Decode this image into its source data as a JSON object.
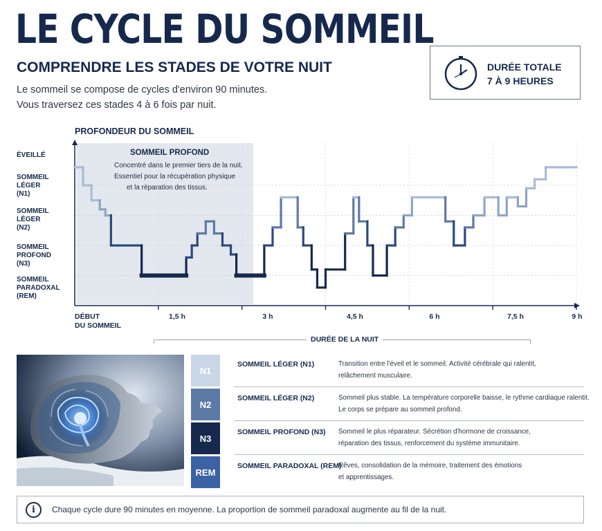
{
  "header": {
    "title": "LE CYCLE DU SOMMEIL",
    "subtitle": "COMPRENDRE LES STADES DE VOTRE NUIT",
    "intro_line1": "Le sommeil se compose de cycles d'environ 90 minutes.",
    "intro_line2": "Vous traversez ces stades 4 à 6 fois par nuit."
  },
  "duration": {
    "icon": "clock-icon",
    "label_line1": "DURÉE TOTALE",
    "label_line2": "7 À 9 HEURES"
  },
  "chart": {
    "title": "PROFONDEUR DU SOMMEIL",
    "y_labels": {
      "wake": "ÉVEILLÉ",
      "n1": "SOMMEIL\nLÉGER\n(N1)",
      "n2": "SOMMEIL\nLÉGER\n(N2)",
      "n3": "SOMMEIL\nPROFOND\n(N3)",
      "rem": "SOMMEIL\nPARADOXAL\n(REM)"
    },
    "x_ticks": [
      "DÉBUT\nDU SOMMEIL",
      "1,5 h",
      "3 h",
      "4,5 h",
      "6 h",
      "7,5 h",
      "9 h"
    ],
    "x_axis_title": "DURÉE DE LA NUIT",
    "deep_sleep_annotation": {
      "title": "SOMMEIL PROFOND",
      "line1": "Concentré dans le premier tiers de la nuit.",
      "line2": "Essentiel pour la récupération physique",
      "line3": "et la réparation des tissus."
    }
  },
  "chart_data": {
    "type": "line",
    "title": "PROFONDEUR DU SOMMEIL",
    "xlabel": "DURÉE DE LA NUIT",
    "ylabel": "",
    "x_unit": "h",
    "xlim": [
      0,
      9
    ],
    "y_categories": [
      "ÉVEILLÉ",
      "SOMMEIL LÉGER (N1)",
      "SOMMEIL LÉGER (N2)",
      "SOMMEIL PROFOND (N3)",
      "SOMMEIL PARADOXAL (REM)"
    ],
    "x_tick_labels": [
      "DÉBUT DU SOMMEIL",
      "1,5 h",
      "3 h",
      "4,5 h",
      "6 h",
      "7,5 h",
      "9 h"
    ],
    "highlight_region": {
      "label": "SOMMEIL PROFOND",
      "x_range": [
        0,
        3.4
      ]
    },
    "series": [
      {
        "x": [
          0,
          0.15,
          0.15,
          0.3,
          0.3,
          0.45,
          0.45,
          0.55,
          0.55,
          0.65,
          0.65,
          1.2,
          1.2,
          1.3,
          1.3,
          2.0,
          2.0,
          2.1,
          2.1,
          2.2,
          2.2,
          2.35,
          2.35,
          2.5,
          2.5,
          2.65,
          2.65,
          2.8,
          2.8,
          2.9,
          2.9,
          3.1,
          3.1,
          3.4,
          3.4,
          3.55
        ],
        "y": [
          4.6,
          4.6,
          4.0,
          4.0,
          3.5,
          3.5,
          3.2,
          3.2,
          3.0,
          3.0,
          2.0,
          2.0,
          1.0,
          1.0,
          1.0,
          1.0,
          1.6,
          1.6,
          2.0,
          2.0,
          2.4,
          2.4,
          2.8,
          2.8,
          2.4,
          2.4,
          2.0,
          2.0,
          1.7,
          1.7,
          1.0,
          1.0,
          1.0,
          1.0,
          2.0,
          2.0
        ]
      },
      {
        "x": [
          3.55,
          3.55,
          3.7,
          3.7,
          4.0,
          4.0,
          4.1,
          4.1,
          4.25,
          4.25,
          4.35,
          4.35,
          4.5,
          4.5,
          4.85,
          4.85,
          5.0,
          5.0,
          5.1,
          5.1,
          5.25,
          5.25,
          5.35,
          5.35,
          5.6,
          5.6,
          5.75,
          5.75,
          5.9,
          5.9,
          6.05,
          6.05,
          6.65,
          6.65,
          6.8,
          6.8,
          7.0,
          7.0,
          7.15,
          7.15,
          7.35,
          7.35,
          7.6,
          7.6,
          7.75,
          7.75,
          7.95,
          7.95,
          8.1,
          8.1,
          8.25,
          8.25,
          8.45,
          8.45,
          9.0
        ],
        "y": [
          2.0,
          2.6,
          2.6,
          3.6,
          3.6,
          2.6,
          2.6,
          2.0,
          2.0,
          1.2,
          1.2,
          0.6,
          0.6,
          1.2,
          1.2,
          2.4,
          2.4,
          3.6,
          3.6,
          2.8,
          2.8,
          2.0,
          2.0,
          1.0,
          1.0,
          2.0,
          2.0,
          2.6,
          2.6,
          3.0,
          3.0,
          3.6,
          3.6,
          2.8,
          2.8,
          2.0,
          2.0,
          2.6,
          2.6,
          3.0,
          3.0,
          3.6,
          3.6,
          3.0,
          3.0,
          3.6,
          3.6,
          3.3,
          3.3,
          3.9,
          3.9,
          4.2,
          4.2,
          4.6,
          4.6
        ]
      }
    ]
  },
  "stages": [
    {
      "code": "N1",
      "name": "SOMMEIL LÉGER (N1)",
      "desc_line1": "Transition entre l'éveil et le sommeil. Activité cérébrale qui ralentit,",
      "desc_line2": "relâchement musculaire.",
      "color": "#c8d6e5"
    },
    {
      "code": "N2",
      "name": "SOMMEIL LÉGER (N2)",
      "desc_line1": "Sommeil plus stable. La température corporelle baisse, le rythme cardiaque ralentit.",
      "desc_line2": "Le corps se prépare au sommeil profond.",
      "color": "#5c7aa6"
    },
    {
      "code": "N3",
      "name": "SOMMEIL PROFOND (N3)",
      "desc_line1": "Sommeil le plus réparateur. Sécrétion d'hormone de croissance,",
      "desc_line2": "réparation des tissus, renforcement du système immunitaire.",
      "color": "#16294d"
    },
    {
      "code": "REM",
      "name": "SOMMEIL PARADOXAL (REM)",
      "desc_line1": "Rêves, consolidation de la mémoire, traitement des émotions",
      "desc_line2": "et apprentissages.",
      "color": "#3a62a4"
    }
  ],
  "note": {
    "icon": "info-icon",
    "text": "Chaque cycle dure 90 minutes en moyenne. La proportion de sommeil paradoxal augmente au fil de la nuit."
  },
  "illustration": {
    "icon": "sleeping-head-brain-illustration"
  }
}
